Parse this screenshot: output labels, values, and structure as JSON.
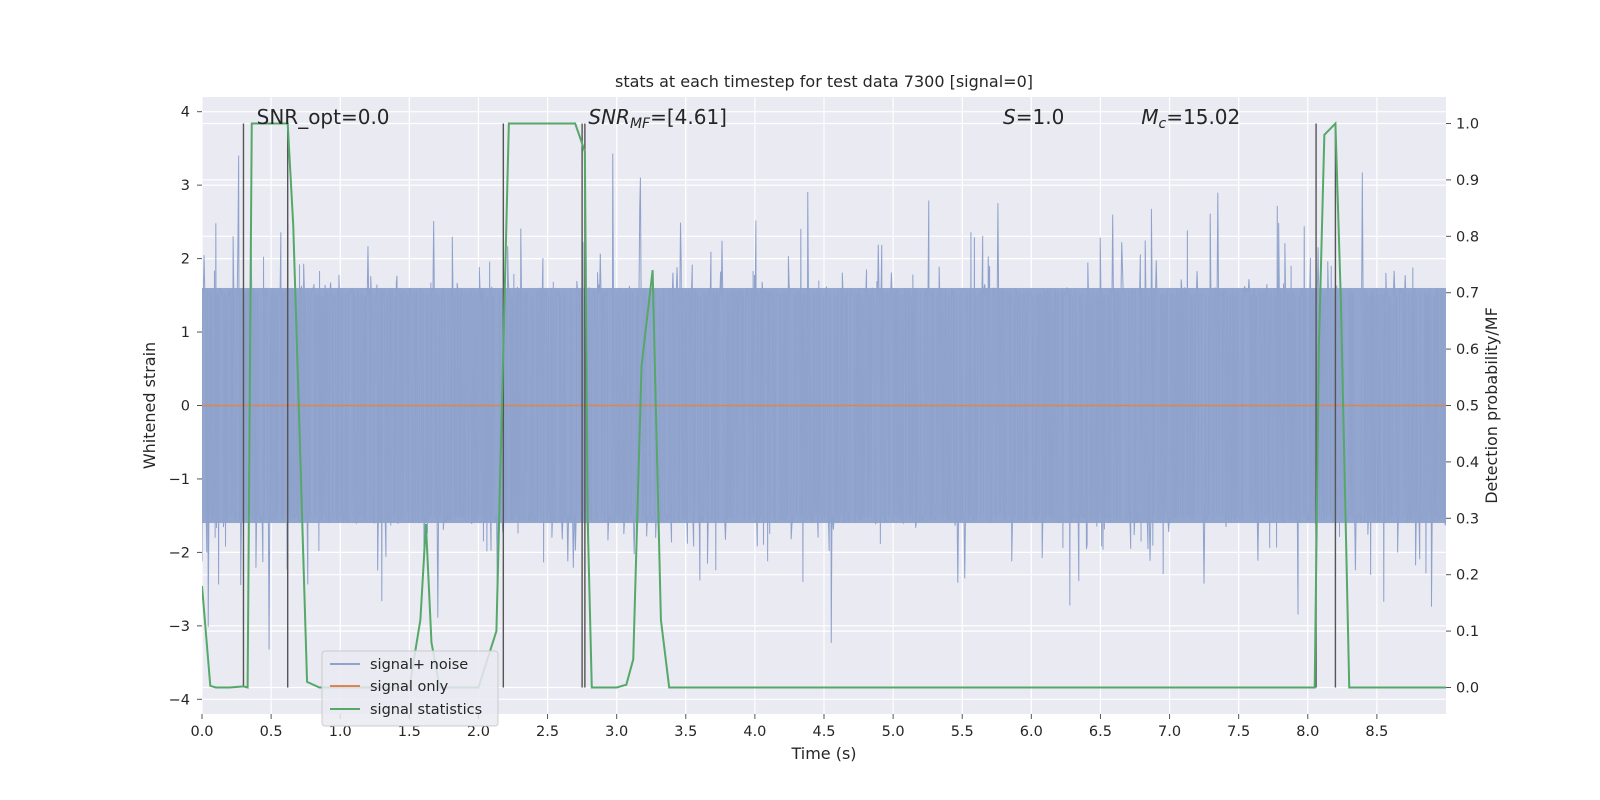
{
  "chart_data": {
    "type": "line",
    "title": "stats at each timestep for test data 7300 [signal=0]",
    "xlabel": "Time (s)",
    "ylabel": "Whitened strain",
    "y2label": "Detection probability/MF",
    "xlim": [
      0,
      9.0
    ],
    "ylim": [
      -4.2,
      4.2
    ],
    "y2lim": [
      -0.047,
      1.047
    ],
    "x_ticks": [
      "0.0",
      "0.5",
      "1.0",
      "1.5",
      "2.0",
      "2.5",
      "3.0",
      "3.5",
      "4.0",
      "4.5",
      "5.0",
      "5.5",
      "6.0",
      "6.5",
      "7.0",
      "7.5",
      "8.0",
      "8.5"
    ],
    "y_ticks": [
      "4",
      "3",
      "2",
      "1",
      "0",
      "−1",
      "−2",
      "−3",
      "−4"
    ],
    "y2_ticks": [
      "1.0",
      "0.9",
      "0.8",
      "0.7",
      "0.6",
      "0.5",
      "0.4",
      "0.3",
      "0.2",
      "0.1",
      "0.0"
    ],
    "annotations": [
      {
        "text": "SNR_opt=0.0",
        "x": 0.2
      },
      {
        "text": "SNR",
        "sub": "MF",
        "suffix": "=[4.61]",
        "x": 2.6
      },
      {
        "text": "S",
        "suffix": "=1.0",
        "x": 5.6
      },
      {
        "text": "M",
        "sub": "c",
        "suffix": "=15.02",
        "x": 6.6
      }
    ],
    "grid": true,
    "legend_position": "lower-left",
    "series": [
      {
        "name": "signal+ noise",
        "color": "#8ea2cc",
        "duration": 9.0,
        "core_amplitude": 1.6,
        "peak_amplitude": 4.0,
        "samples": 1800
      },
      {
        "name": "signal only",
        "color": "#dd8452",
        "constant": 0
      },
      {
        "name": "signal statistics",
        "color": "#55a868",
        "axis": "right",
        "x": [
          0.0,
          0.06,
          0.1,
          0.2,
          0.3,
          0.33,
          0.36,
          0.38,
          0.62,
          0.66,
          0.7,
          0.76,
          0.85,
          1.1,
          1.5,
          1.58,
          1.62,
          1.66,
          1.72,
          2.0,
          2.13,
          2.18,
          2.22,
          2.26,
          2.7,
          2.77,
          2.79,
          2.82,
          3.0,
          3.07,
          3.12,
          3.18,
          3.26,
          3.32,
          3.38,
          3.5,
          8.0,
          8.05,
          8.08,
          8.12,
          8.2,
          8.24,
          8.3,
          8.5,
          9.0
        ],
        "y": [
          0.18,
          0.003,
          0.0,
          0.0,
          0.002,
          0.0,
          1.0,
          1.0,
          1.0,
          0.82,
          0.5,
          0.01,
          0.0,
          0.0,
          0.0,
          0.12,
          0.29,
          0.08,
          0.0,
          0.0,
          0.1,
          0.6,
          1.0,
          1.0,
          1.0,
          0.95,
          0.3,
          0.0,
          0.0,
          0.005,
          0.05,
          0.57,
          0.74,
          0.12,
          0.0,
          0.0,
          0.0,
          0.0,
          0.6,
          0.98,
          1.0,
          0.68,
          0.0,
          0.0,
          0.0
        ]
      }
    ],
    "vlines": [
      0.3,
      0.62,
      2.18,
      2.75,
      2.77,
      8.06,
      8.2
    ]
  }
}
